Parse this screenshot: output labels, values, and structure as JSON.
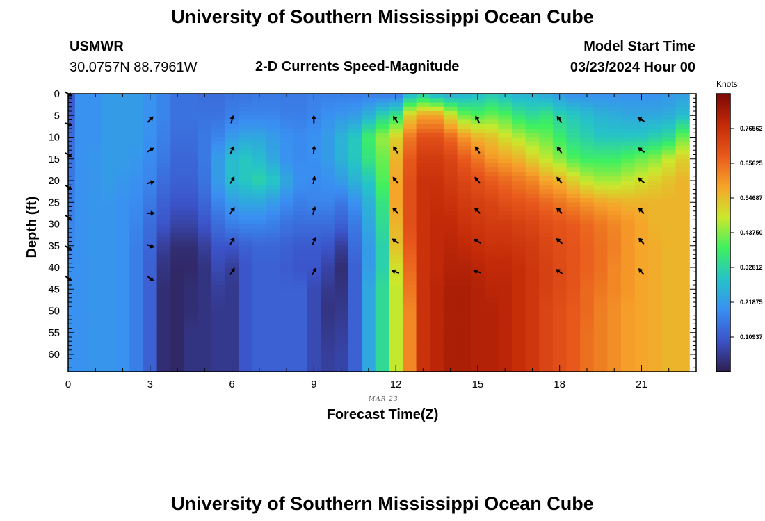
{
  "title": "University of Southern Mississippi Ocean Cube",
  "station": "USMWR",
  "coordinates": "30.0757N  88.7961W",
  "subtitle": "2-D Currents Speed-Magnitude",
  "model_start_label": "Model Start Time",
  "model_start_value": "03/23/2024 Hour 00",
  "date_note": "MAR 23",
  "footer_title": "University of Southern Mississippi Ocean Cube",
  "colors": {
    "frame": "#000000",
    "arrow": "#000000",
    "background": "#ffffff"
  },
  "chart_data": {
    "type": "heatmap",
    "title": "2-D Currents Speed-Magnitude",
    "xlabel": "Forecast Time(Z)",
    "ylabel": "Depth (ft)",
    "x_ticks": [
      "0",
      "3",
      "6",
      "9",
      "12",
      "15",
      "18",
      "21"
    ],
    "y_ticks": [
      "0",
      "5",
      "10",
      "15",
      "20",
      "25",
      "30",
      "35",
      "40",
      "45",
      "50",
      "55",
      "60"
    ],
    "xlim": [
      0,
      23
    ],
    "ylim": [
      0,
      64
    ],
    "colorbar": {
      "label": "Knots",
      "min": 0,
      "max": 0.875,
      "ticks": [
        "0.10937",
        "0.21875",
        "0.32812",
        "0.43750",
        "0.54687",
        "0.65625",
        "0.76562"
      ],
      "stops": [
        "#2e1e4e",
        "#3b53c9",
        "#3a8ef2",
        "#25c3c8",
        "#3ef060",
        "#cbe82c",
        "#f6a32a",
        "#e8581c",
        "#c32a08",
        "#7c0804"
      ]
    },
    "hours": [
      0,
      0.5,
      1,
      1.5,
      2,
      2.5,
      3,
      3.5,
      4,
      4.5,
      5,
      5.5,
      6,
      6.5,
      7,
      7.5,
      8,
      8.5,
      9,
      9.5,
      10,
      10.5,
      11,
      11.5,
      12,
      12.5,
      13,
      13.5,
      14,
      14.5,
      15,
      15.5,
      16,
      16.5,
      17,
      17.5,
      18,
      18.5,
      19,
      19.5,
      20,
      20.5,
      21,
      21.5,
      22,
      22.5
    ],
    "depths": [
      0,
      5,
      10,
      15,
      20,
      25,
      30,
      35,
      40,
      45,
      50,
      55,
      60
    ],
    "speed_knots": [
      [
        0.1,
        0.2,
        0.2,
        0.22,
        0.22,
        0.22,
        0.2,
        0.18,
        0.15,
        0.15,
        0.14,
        0.14,
        0.15,
        0.15,
        0.16,
        0.16,
        0.16,
        0.16,
        0.17,
        0.17,
        0.17,
        0.17,
        0.17,
        0.16,
        0.16,
        0.26,
        0.3,
        0.26,
        0.24,
        0.26,
        0.28,
        0.3,
        0.28,
        0.26,
        0.26,
        0.24,
        0.22,
        0.2,
        0.2,
        0.2,
        0.2,
        0.2,
        0.2,
        0.2,
        0.21,
        0.22
      ],
      [
        0.12,
        0.2,
        0.2,
        0.22,
        0.22,
        0.22,
        0.2,
        0.18,
        0.15,
        0.15,
        0.15,
        0.15,
        0.17,
        0.18,
        0.18,
        0.18,
        0.17,
        0.17,
        0.18,
        0.2,
        0.21,
        0.22,
        0.26,
        0.32,
        0.36,
        0.52,
        0.58,
        0.58,
        0.5,
        0.42,
        0.4,
        0.42,
        0.4,
        0.36,
        0.34,
        0.36,
        0.32,
        0.3,
        0.28,
        0.26,
        0.25,
        0.24,
        0.24,
        0.24,
        0.25,
        0.28
      ],
      [
        0.14,
        0.2,
        0.2,
        0.22,
        0.22,
        0.22,
        0.2,
        0.17,
        0.14,
        0.14,
        0.16,
        0.18,
        0.22,
        0.24,
        0.24,
        0.22,
        0.2,
        0.19,
        0.2,
        0.22,
        0.26,
        0.3,
        0.38,
        0.45,
        0.52,
        0.64,
        0.7,
        0.7,
        0.66,
        0.6,
        0.56,
        0.54,
        0.5,
        0.47,
        0.44,
        0.42,
        0.38,
        0.34,
        0.32,
        0.3,
        0.3,
        0.3,
        0.3,
        0.32,
        0.34,
        0.42
      ],
      [
        0.15,
        0.2,
        0.21,
        0.22,
        0.22,
        0.21,
        0.19,
        0.16,
        0.13,
        0.13,
        0.16,
        0.22,
        0.28,
        0.3,
        0.28,
        0.24,
        0.2,
        0.19,
        0.2,
        0.22,
        0.26,
        0.3,
        0.36,
        0.42,
        0.56,
        0.68,
        0.74,
        0.74,
        0.72,
        0.68,
        0.64,
        0.6,
        0.58,
        0.56,
        0.52,
        0.48,
        0.44,
        0.4,
        0.38,
        0.38,
        0.38,
        0.4,
        0.42,
        0.44,
        0.48,
        0.52
      ],
      [
        0.16,
        0.2,
        0.21,
        0.22,
        0.21,
        0.2,
        0.18,
        0.14,
        0.12,
        0.12,
        0.15,
        0.22,
        0.28,
        0.3,
        0.32,
        0.3,
        0.24,
        0.2,
        0.19,
        0.2,
        0.22,
        0.26,
        0.3,
        0.4,
        0.58,
        0.7,
        0.76,
        0.76,
        0.74,
        0.72,
        0.7,
        0.68,
        0.66,
        0.64,
        0.62,
        0.58,
        0.56,
        0.52,
        0.48,
        0.46,
        0.46,
        0.48,
        0.5,
        0.52,
        0.54,
        0.56
      ],
      [
        0.17,
        0.2,
        0.21,
        0.21,
        0.2,
        0.19,
        0.16,
        0.12,
        0.1,
        0.1,
        0.13,
        0.18,
        0.22,
        0.24,
        0.24,
        0.22,
        0.19,
        0.17,
        0.18,
        0.18,
        0.16,
        0.2,
        0.26,
        0.36,
        0.58,
        0.7,
        0.76,
        0.77,
        0.76,
        0.74,
        0.73,
        0.72,
        0.7,
        0.69,
        0.68,
        0.66,
        0.64,
        0.62,
        0.6,
        0.58,
        0.57,
        0.56,
        0.56,
        0.56,
        0.56,
        0.56
      ],
      [
        0.18,
        0.2,
        0.21,
        0.21,
        0.2,
        0.18,
        0.14,
        0.1,
        0.07,
        0.07,
        0.1,
        0.14,
        0.17,
        0.18,
        0.18,
        0.17,
        0.15,
        0.14,
        0.14,
        0.14,
        0.12,
        0.16,
        0.24,
        0.34,
        0.56,
        0.7,
        0.76,
        0.78,
        0.78,
        0.76,
        0.75,
        0.74,
        0.74,
        0.73,
        0.72,
        0.7,
        0.69,
        0.68,
        0.66,
        0.64,
        0.62,
        0.6,
        0.58,
        0.56,
        0.56,
        0.56
      ],
      [
        0.19,
        0.2,
        0.21,
        0.21,
        0.2,
        0.17,
        0.13,
        0.06,
        0.03,
        0.03,
        0.06,
        0.1,
        0.1,
        0.12,
        0.13,
        0.13,
        0.12,
        0.11,
        0.11,
        0.1,
        0.06,
        0.14,
        0.22,
        0.32,
        0.54,
        0.68,
        0.76,
        0.78,
        0.79,
        0.78,
        0.77,
        0.76,
        0.76,
        0.75,
        0.74,
        0.72,
        0.7,
        0.69,
        0.67,
        0.65,
        0.63,
        0.6,
        0.58,
        0.57,
        0.56,
        0.56
      ],
      [
        0.2,
        0.2,
        0.21,
        0.21,
        0.2,
        0.17,
        0.12,
        0.04,
        0.02,
        0.02,
        0.04,
        0.08,
        0.06,
        0.1,
        0.12,
        0.12,
        0.11,
        0.1,
        0.1,
        0.07,
        0.03,
        0.12,
        0.22,
        0.32,
        0.5,
        0.66,
        0.76,
        0.78,
        0.8,
        0.8,
        0.79,
        0.78,
        0.78,
        0.77,
        0.75,
        0.73,
        0.71,
        0.69,
        0.67,
        0.65,
        0.62,
        0.6,
        0.58,
        0.57,
        0.56,
        0.56
      ],
      [
        0.2,
        0.2,
        0.21,
        0.21,
        0.2,
        0.17,
        0.12,
        0.03,
        0.02,
        0.03,
        0.04,
        0.06,
        0.05,
        0.1,
        0.12,
        0.12,
        0.12,
        0.12,
        0.08,
        0.05,
        0.04,
        0.12,
        0.24,
        0.34,
        0.48,
        0.64,
        0.76,
        0.79,
        0.81,
        0.81,
        0.8,
        0.79,
        0.79,
        0.77,
        0.75,
        0.73,
        0.71,
        0.69,
        0.66,
        0.64,
        0.62,
        0.6,
        0.58,
        0.57,
        0.56,
        0.56
      ],
      [
        0.2,
        0.2,
        0.21,
        0.21,
        0.2,
        0.17,
        0.12,
        0.03,
        0.02,
        0.03,
        0.04,
        0.05,
        0.05,
        0.1,
        0.12,
        0.12,
        0.12,
        0.12,
        0.08,
        0.04,
        0.05,
        0.12,
        0.24,
        0.34,
        0.48,
        0.62,
        0.76,
        0.79,
        0.81,
        0.81,
        0.8,
        0.8,
        0.79,
        0.77,
        0.75,
        0.72,
        0.7,
        0.68,
        0.66,
        0.63,
        0.61,
        0.59,
        0.58,
        0.57,
        0.56,
        0.56
      ],
      [
        0.2,
        0.2,
        0.21,
        0.21,
        0.2,
        0.17,
        0.12,
        0.03,
        0.02,
        0.04,
        0.04,
        0.05,
        0.05,
        0.1,
        0.12,
        0.12,
        0.12,
        0.12,
        0.08,
        0.05,
        0.06,
        0.12,
        0.24,
        0.34,
        0.48,
        0.62,
        0.76,
        0.79,
        0.81,
        0.81,
        0.8,
        0.8,
        0.79,
        0.77,
        0.75,
        0.72,
        0.7,
        0.68,
        0.65,
        0.63,
        0.61,
        0.59,
        0.58,
        0.57,
        0.56,
        0.56
      ],
      [
        0.2,
        0.2,
        0.21,
        0.21,
        0.2,
        0.17,
        0.12,
        0.03,
        0.02,
        0.04,
        0.04,
        0.05,
        0.05,
        0.1,
        0.12,
        0.12,
        0.12,
        0.12,
        0.08,
        0.06,
        0.07,
        0.12,
        0.24,
        0.34,
        0.48,
        0.62,
        0.76,
        0.79,
        0.81,
        0.81,
        0.8,
        0.8,
        0.79,
        0.77,
        0.75,
        0.72,
        0.7,
        0.68,
        0.65,
        0.63,
        0.61,
        0.59,
        0.58,
        0.57,
        0.56,
        0.56
      ]
    ],
    "arrows": [
      {
        "t": 0,
        "d": 0,
        "dir": 120
      },
      {
        "t": 0,
        "d": 7,
        "dir": 110
      },
      {
        "t": 0,
        "d": 14,
        "dir": 120
      },
      {
        "t": 0,
        "d": 21.5,
        "dir": 125
      },
      {
        "t": 0,
        "d": 28.5,
        "dir": 130
      },
      {
        "t": 0,
        "d": 35.5,
        "dir": 125
      },
      {
        "t": 0,
        "d": 42.5,
        "dir": 125
      },
      {
        "t": 3,
        "d": 6,
        "dir": 45
      },
      {
        "t": 3,
        "d": 13,
        "dir": 60
      },
      {
        "t": 3,
        "d": 20.5,
        "dir": 75
      },
      {
        "t": 3,
        "d": 27.5,
        "dir": 90
      },
      {
        "t": 3,
        "d": 35,
        "dir": 110
      },
      {
        "t": 3,
        "d": 42.5,
        "dir": 125
      },
      {
        "t": 6,
        "d": 6,
        "dir": 15
      },
      {
        "t": 6,
        "d": 13,
        "dir": 25
      },
      {
        "t": 6,
        "d": 20,
        "dir": 30
      },
      {
        "t": 6,
        "d": 27,
        "dir": 35
      },
      {
        "t": 6,
        "d": 34,
        "dir": 30
      },
      {
        "t": 6,
        "d": 41,
        "dir": 35
      },
      {
        "t": 9,
        "d": 6,
        "dir": 0
      },
      {
        "t": 9,
        "d": 13,
        "dir": 5
      },
      {
        "t": 9,
        "d": 20,
        "dir": 10
      },
      {
        "t": 9,
        "d": 27,
        "dir": 15
      },
      {
        "t": 9,
        "d": 34,
        "dir": 20
      },
      {
        "t": 9,
        "d": 41,
        "dir": 30
      },
      {
        "t": 12,
        "d": 6,
        "dir": -35
      },
      {
        "t": 12,
        "d": 13,
        "dir": -35
      },
      {
        "t": 12,
        "d": 20,
        "dir": -40
      },
      {
        "t": 12,
        "d": 27,
        "dir": -45
      },
      {
        "t": 12,
        "d": 34,
        "dir": -55
      },
      {
        "t": 12,
        "d": 41,
        "dir": -70
      },
      {
        "t": 15,
        "d": 6,
        "dir": -30
      },
      {
        "t": 15,
        "d": 13,
        "dir": -35
      },
      {
        "t": 15,
        "d": 20,
        "dir": -40
      },
      {
        "t": 15,
        "d": 27,
        "dir": -45
      },
      {
        "t": 15,
        "d": 34,
        "dir": -60
      },
      {
        "t": 15,
        "d": 41,
        "dir": -75
      },
      {
        "t": 18,
        "d": 6,
        "dir": -35
      },
      {
        "t": 18,
        "d": 13,
        "dir": -35
      },
      {
        "t": 18,
        "d": 20,
        "dir": -40
      },
      {
        "t": 18,
        "d": 27,
        "dir": -45
      },
      {
        "t": 18,
        "d": 34,
        "dir": -50
      },
      {
        "t": 18,
        "d": 41,
        "dir": -55
      },
      {
        "t": 21,
        "d": 6,
        "dir": -60
      },
      {
        "t": 21,
        "d": 13,
        "dir": -55
      },
      {
        "t": 21,
        "d": 20,
        "dir": -50
      },
      {
        "t": 21,
        "d": 27,
        "dir": -45
      },
      {
        "t": 21,
        "d": 34,
        "dir": -40
      },
      {
        "t": 21,
        "d": 41,
        "dir": -40
      }
    ]
  }
}
